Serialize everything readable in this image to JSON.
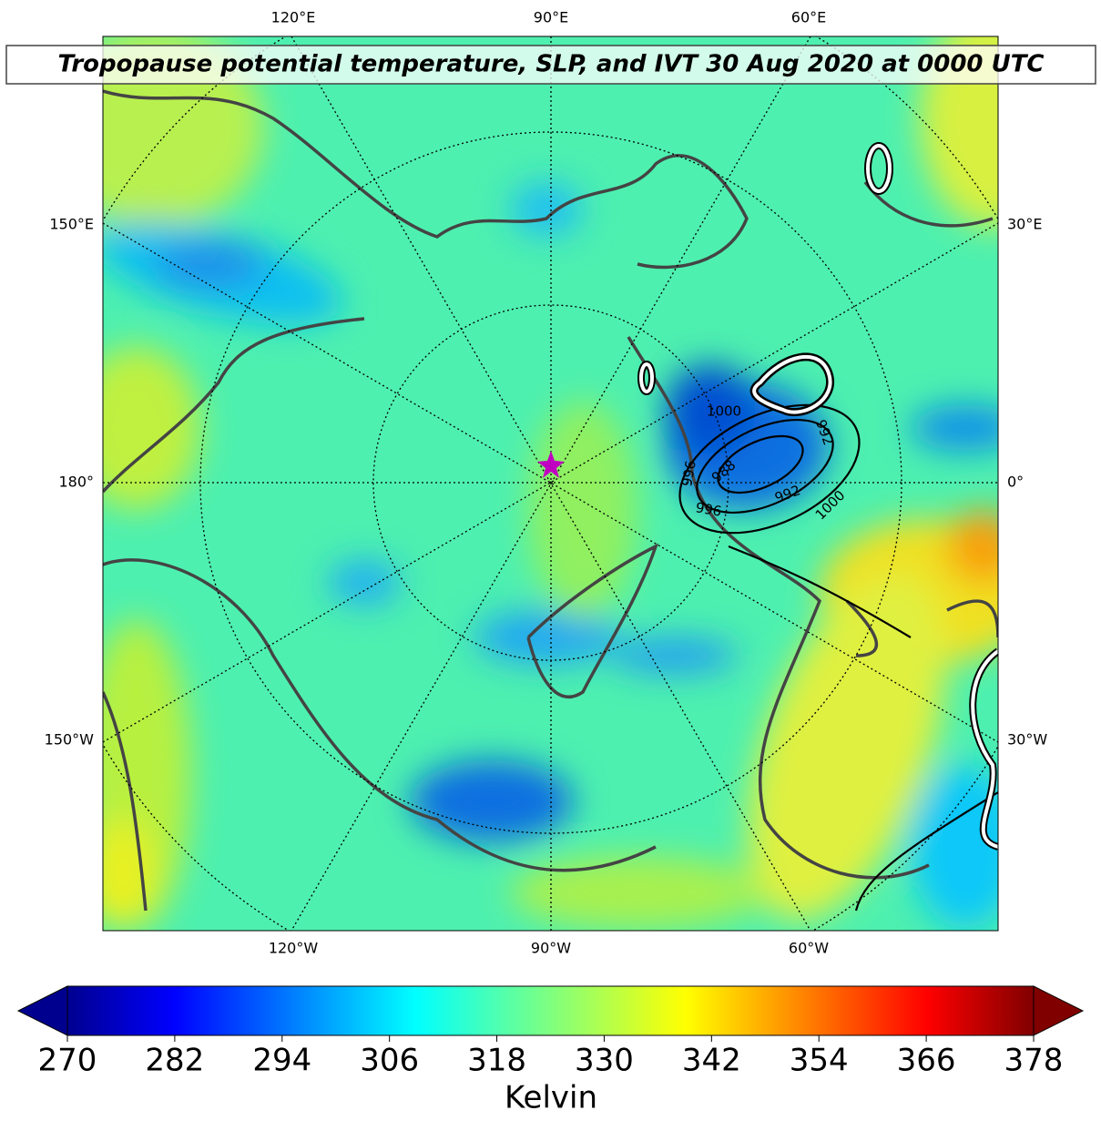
{
  "map": {
    "title": "Tropopause potential temperature, SLP, and IVT 30 Aug 2020 at 0000 UTC",
    "lon_labels": {
      "top": [
        "120°E",
        "90°E",
        "60°E"
      ],
      "left": [
        "150°E",
        "180°",
        "150°W"
      ],
      "right": [
        "30°E",
        "0°",
        "30°W"
      ],
      "bottom": [
        "120°W",
        "90°W",
        "60°W"
      ]
    },
    "isobar_labels": [
      1000,
      992,
      996,
      988,
      992,
      996,
      1000
    ]
  },
  "colorbar": {
    "label": "Kelvin",
    "lim": [
      270,
      378
    ],
    "ticks": [
      270,
      282,
      294,
      306,
      318,
      330,
      342,
      354,
      366,
      378
    ]
  }
}
